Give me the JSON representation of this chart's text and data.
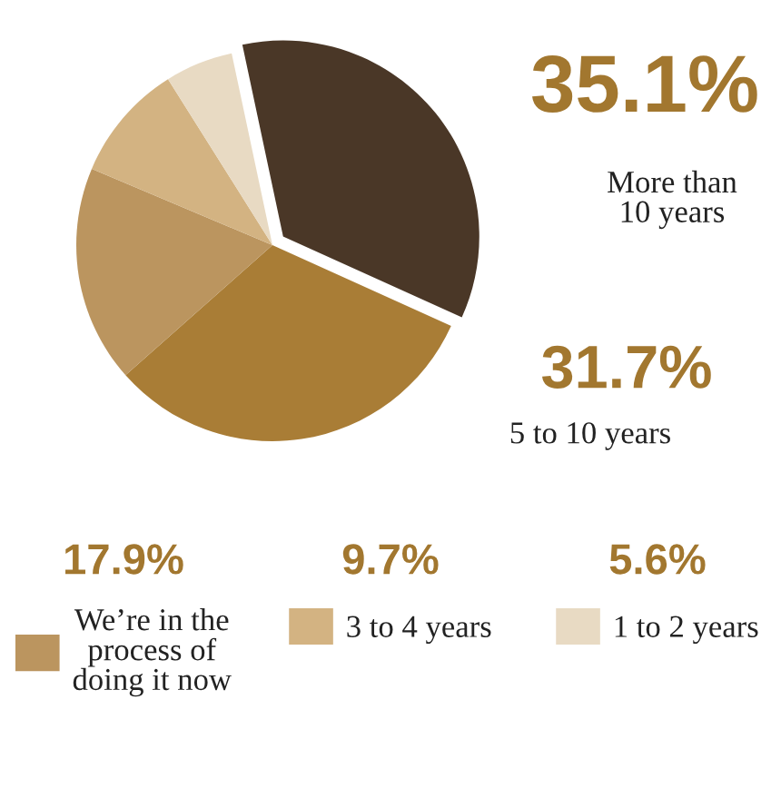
{
  "chart_data": {
    "type": "pie",
    "categories": [
      "More than\n10 years",
      "5 to 10 years",
      "We’re in the\nprocess of\ndoing it now",
      "3 to 4 years",
      "1 to 2 years"
    ],
    "values": [
      35.1,
      31.7,
      17.9,
      9.7,
      5.6
    ],
    "colors": [
      "#4a3727",
      "#a97d36",
      "#bb955f",
      "#d3b382",
      "#e8dac3"
    ],
    "legend": "bottom",
    "value_labels": [
      "35.1%",
      "31.7%",
      "17.9%",
      "9.7%",
      "5.6%"
    ]
  }
}
